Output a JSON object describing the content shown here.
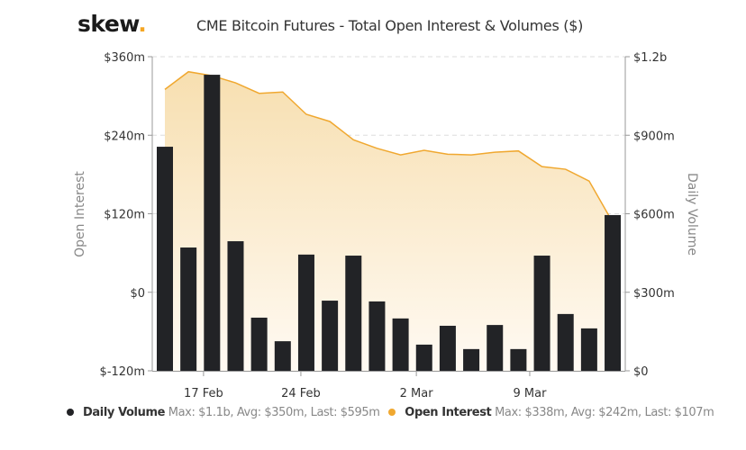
{
  "header": {
    "logo_text": "skew",
    "logo_dot": ".",
    "title": "CME Bitcoin Futures - Total Open Interest & Volumes ($)"
  },
  "colors": {
    "volume": "#222326",
    "open_interest": "#f0a830",
    "open_interest_fill_top": "#f7dfb0",
    "open_interest_fill_bottom": "#fffaf3",
    "grid": "#dddddd",
    "axis": "#999999"
  },
  "legend": [
    {
      "name": "Daily Volume",
      "stats": "Max: $1.1b, Avg: $350m, Last: $595m",
      "color": "#222326"
    },
    {
      "name": "Open Interest",
      "stats": "Max: $338m, Avg: $242m, Last: $107m",
      "color": "#f0a830"
    }
  ],
  "chart_data": {
    "type": "bar+area",
    "title": "CME Bitcoin Futures - Total Open Interest & Volumes ($)",
    "xlabel": "",
    "x_tick_labels": [
      "17 Feb",
      "24 Feb",
      "2 Mar",
      "9 Mar"
    ],
    "left_axis": {
      "label": "Open Interest",
      "ylim": [
        -120,
        360
      ],
      "ticks": [
        -120,
        0,
        120,
        240,
        360
      ],
      "tick_labels": [
        "$-120m",
        "$0",
        "$120m",
        "$240m",
        "$360m"
      ],
      "unit": "millions USD"
    },
    "right_axis": {
      "label": "Daily Volume",
      "ylim": [
        0,
        1200
      ],
      "ticks": [
        0,
        300,
        600,
        900,
        1200
      ],
      "tick_labels": [
        "$0",
        "$300m",
        "$600m",
        "$900m",
        "$1.2b"
      ],
      "unit": "millions USD"
    },
    "grid": true,
    "legend_position": "bottom",
    "series": [
      {
        "name": "Daily Volume",
        "type": "bar",
        "axis": "right",
        "values": [
          856,
          471,
          1131,
          495,
          203,
          113,
          444,
          268,
          440,
          265,
          200,
          100,
          172,
          83,
          175,
          83,
          440,
          217,
          162,
          595
        ]
      },
      {
        "name": "Open Interest",
        "type": "area",
        "axis": "left",
        "values": [
          310,
          337,
          331,
          320,
          304,
          306,
          272,
          261,
          233,
          220,
          210,
          217,
          211,
          210,
          214,
          216,
          192,
          188,
          170,
          107
        ]
      }
    ]
  }
}
